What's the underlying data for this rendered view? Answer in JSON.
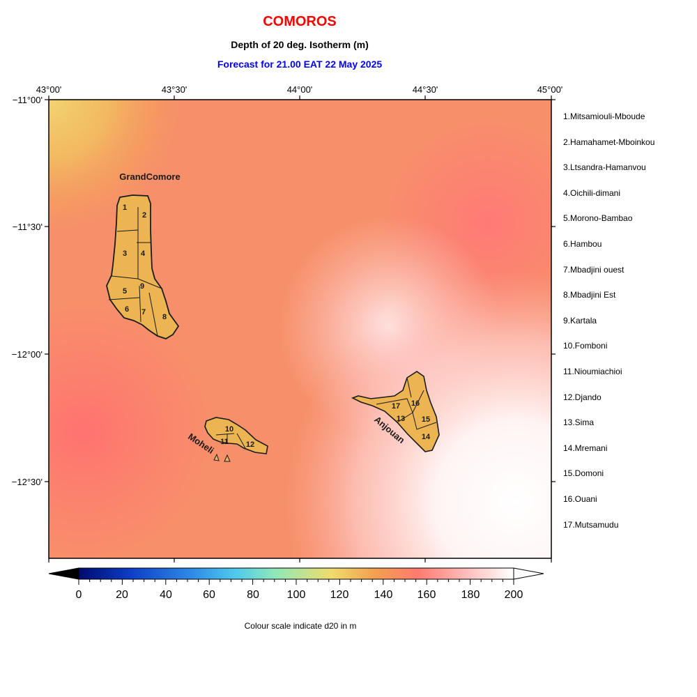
{
  "header": {
    "title": "COMOROS",
    "subtitle": "Depth of 20 deg. Isotherm (m)",
    "forecast": "Forecast for  21.00 EAT 22 May 2025"
  },
  "map": {
    "lon_ticks": [
      "43°00'",
      "43°30'",
      "44°00'",
      "44°30'",
      "45°00'"
    ],
    "lat_ticks": [
      "−11°00'",
      "−11°30'",
      "−12°00'",
      "−12°30'"
    ],
    "island_labels": {
      "grand_comore": "GrandComore",
      "moheli": "Moheli",
      "anjouan": "Anjouan"
    },
    "region_numbers": [
      "1",
      "2",
      "3",
      "4",
      "5",
      "6",
      "7",
      "8",
      "9",
      "10",
      "11",
      "12",
      "13",
      "14",
      "15",
      "16",
      "17"
    ]
  },
  "regions": [
    "1.Mitsamiouli-Mboude",
    "2.Hamahamet-Mboinkou",
    "3.Ltsandra-Hamanvou",
    "4.Oichili-dimani",
    "5.Morono-Bambao",
    "6.Hambou",
    "7.Mbadjini ouest",
    "8.Mbadjini Est",
    "9.Kartala",
    "10.Fomboni",
    "11.Nioumiachioi",
    "12.Djando",
    "13.Sima",
    "14.Mremani",
    "15.Domoni",
    "16.Ouani",
    "17.Mutsamudu"
  ],
  "colorbar": {
    "ticks": [
      "0",
      "20",
      "40",
      "60",
      "80",
      "100",
      "120",
      "140",
      "160",
      "180",
      "200"
    ],
    "caption": "Colour scale indicate d20 in m",
    "colors": [
      "#000a6e",
      "#0d3ec8",
      "#2f8be6",
      "#4fc9ec",
      "#8ee8b8",
      "#f0dc6c",
      "#f2a050",
      "#ff7a70",
      "#ffc2c0",
      "#ffffff"
    ]
  }
}
